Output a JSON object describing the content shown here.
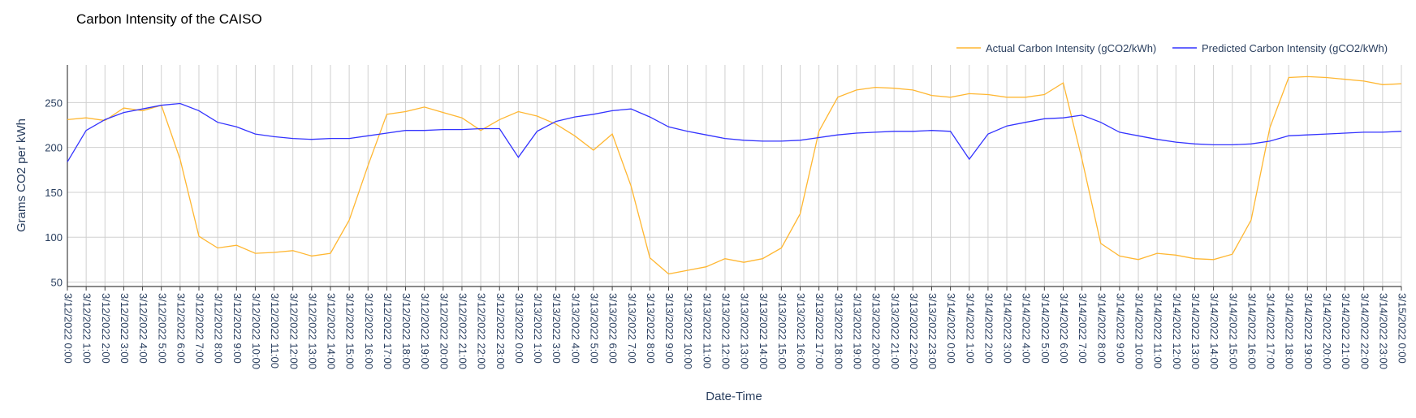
{
  "chart_data": {
    "type": "line",
    "title": "Carbon Intensity of the CAISO",
    "xlabel": "Date-Time",
    "ylabel": "Grams CO2 per kWh",
    "ylim": [
      45,
      292
    ],
    "y_ticks": [
      50,
      100,
      150,
      200,
      250
    ],
    "grid": "on",
    "legend_position": "top-right",
    "x": [
      "3/12/2022 0:00",
      "3/12/2022 1:00",
      "3/12/2022 2:00",
      "3/12/2022 3:00",
      "3/12/2022 4:00",
      "3/12/2022 5:00",
      "3/12/2022 6:00",
      "3/12/2022 7:00",
      "3/12/2022 8:00",
      "3/12/2022 9:00",
      "3/12/2022 10:00",
      "3/12/2022 11:00",
      "3/12/2022 12:00",
      "3/12/2022 13:00",
      "3/12/2022 14:00",
      "3/12/2022 15:00",
      "3/12/2022 16:00",
      "3/12/2022 17:00",
      "3/12/2022 18:00",
      "3/12/2022 19:00",
      "3/12/2022 20:00",
      "3/12/2022 21:00",
      "3/12/2022 22:00",
      "3/12/2022 23:00",
      "3/13/2022 0:00",
      "3/13/2022 1:00",
      "3/13/2022 3:00",
      "3/13/2022 4:00",
      "3/13/2022 5:00",
      "3/13/2022 6:00",
      "3/13/2022 7:00",
      "3/13/2022 8:00",
      "3/13/2022 9:00",
      "3/13/2022 10:00",
      "3/13/2022 11:00",
      "3/13/2022 12:00",
      "3/13/2022 13:00",
      "3/13/2022 14:00",
      "3/13/2022 15:00",
      "3/13/2022 16:00",
      "3/13/2022 17:00",
      "3/13/2022 18:00",
      "3/13/2022 19:00",
      "3/13/2022 20:00",
      "3/13/2022 21:00",
      "3/13/2022 22:00",
      "3/13/2022 23:00",
      "3/14/2022 0:00",
      "3/14/2022 1:00",
      "3/14/2022 2:00",
      "3/14/2022 3:00",
      "3/14/2022 4:00",
      "3/14/2022 5:00",
      "3/14/2022 6:00",
      "3/14/2022 7:00",
      "3/14/2022 8:00",
      "3/14/2022 9:00",
      "3/14/2022 10:00",
      "3/14/2022 11:00",
      "3/14/2022 12:00",
      "3/14/2022 13:00",
      "3/14/2022 14:00",
      "3/14/2022 15:00",
      "3/14/2022 16:00",
      "3/14/2022 17:00",
      "3/14/2022 18:00",
      "3/14/2022 19:00",
      "3/14/2022 20:00",
      "3/14/2022 21:00",
      "3/14/2022 22:00",
      "3/14/2022 23:00",
      "3/15/2022 0:00"
    ],
    "series": [
      {
        "name": "Actual Carbon Intensity (gCO2/kWh)",
        "color": "#ffb732",
        "values": [
          231,
          233,
          230,
          244,
          241,
          247,
          187,
          101,
          88,
          91,
          82,
          83,
          85,
          79,
          82,
          119,
          180,
          237,
          240,
          245,
          239,
          233,
          219,
          231,
          240,
          235,
          226,
          213,
          197,
          215,
          157,
          77,
          59,
          63,
          67,
          76,
          72,
          76,
          88,
          126,
          218,
          256,
          264,
          267,
          266,
          264,
          258,
          256,
          260,
          259,
          256,
          256,
          259,
          272,
          187,
          93,
          79,
          75,
          82,
          80,
          76,
          75,
          81,
          119,
          222,
          278,
          279,
          278,
          276,
          274,
          270,
          271
        ]
      },
      {
        "name": "Predicted Carbon Intensity (gCO2/kWh)",
        "color": "#3333ff",
        "values": [
          184,
          219,
          231,
          239,
          243,
          247,
          249,
          241,
          228,
          223,
          215,
          212,
          210,
          209,
          210,
          210,
          213,
          216,
          219,
          219,
          220,
          220,
          221,
          221,
          189,
          218,
          229,
          234,
          237,
          241,
          243,
          234,
          223,
          218,
          214,
          210,
          208,
          207,
          207,
          208,
          211,
          214,
          216,
          217,
          218,
          218,
          219,
          218,
          187,
          215,
          224,
          228,
          232,
          233,
          236,
          228,
          217,
          213,
          209,
          206,
          204,
          203,
          203,
          204,
          207,
          213,
          214,
          215,
          216,
          217,
          217,
          218
        ]
      }
    ]
  }
}
